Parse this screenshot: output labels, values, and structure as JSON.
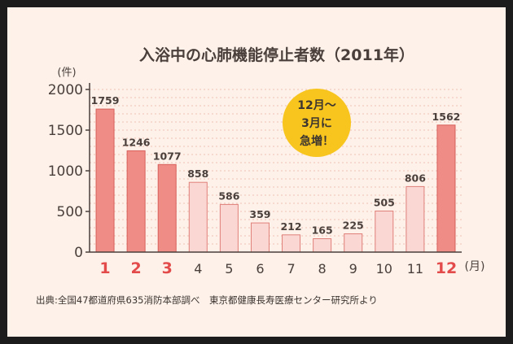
{
  "colors": {
    "background": "#fdf1ea",
    "frame": "#1c1c1c",
    "text": "#4a3f3a",
    "bar_dark_fill": "#ee8c85",
    "bar_dark_stroke": "#d8605b",
    "bar_light_fill": "#fbd7d3",
    "bar_light_stroke": "#e0807a",
    "month_highlight": "#e34a4a",
    "badge": "#f7c51e",
    "grid": "#f0c2b6"
  },
  "chart_data": {
    "type": "bar",
    "title": "入浴中の心肺機能停止者数（2011年）",
    "ylabel": "(件)",
    "xlabel": "(月)",
    "ylim": [
      0,
      2000
    ],
    "yticks": [
      0,
      500,
      1000,
      1500,
      2000
    ],
    "categories": [
      "1",
      "2",
      "3",
      "4",
      "5",
      "6",
      "7",
      "8",
      "9",
      "10",
      "11",
      "12"
    ],
    "values": [
      1759,
      1246,
      1077,
      858,
      586,
      359,
      212,
      165,
      225,
      505,
      806,
      1562
    ],
    "highlighted_categories": [
      "1",
      "2",
      "3",
      "12"
    ],
    "grid": true,
    "badge": {
      "lines": [
        "12月～",
        "3月に",
        "急増！"
      ]
    },
    "source": "出典:全国47都道府県635消防本部調べ　東京都健康長寿医療センター研究所より"
  }
}
